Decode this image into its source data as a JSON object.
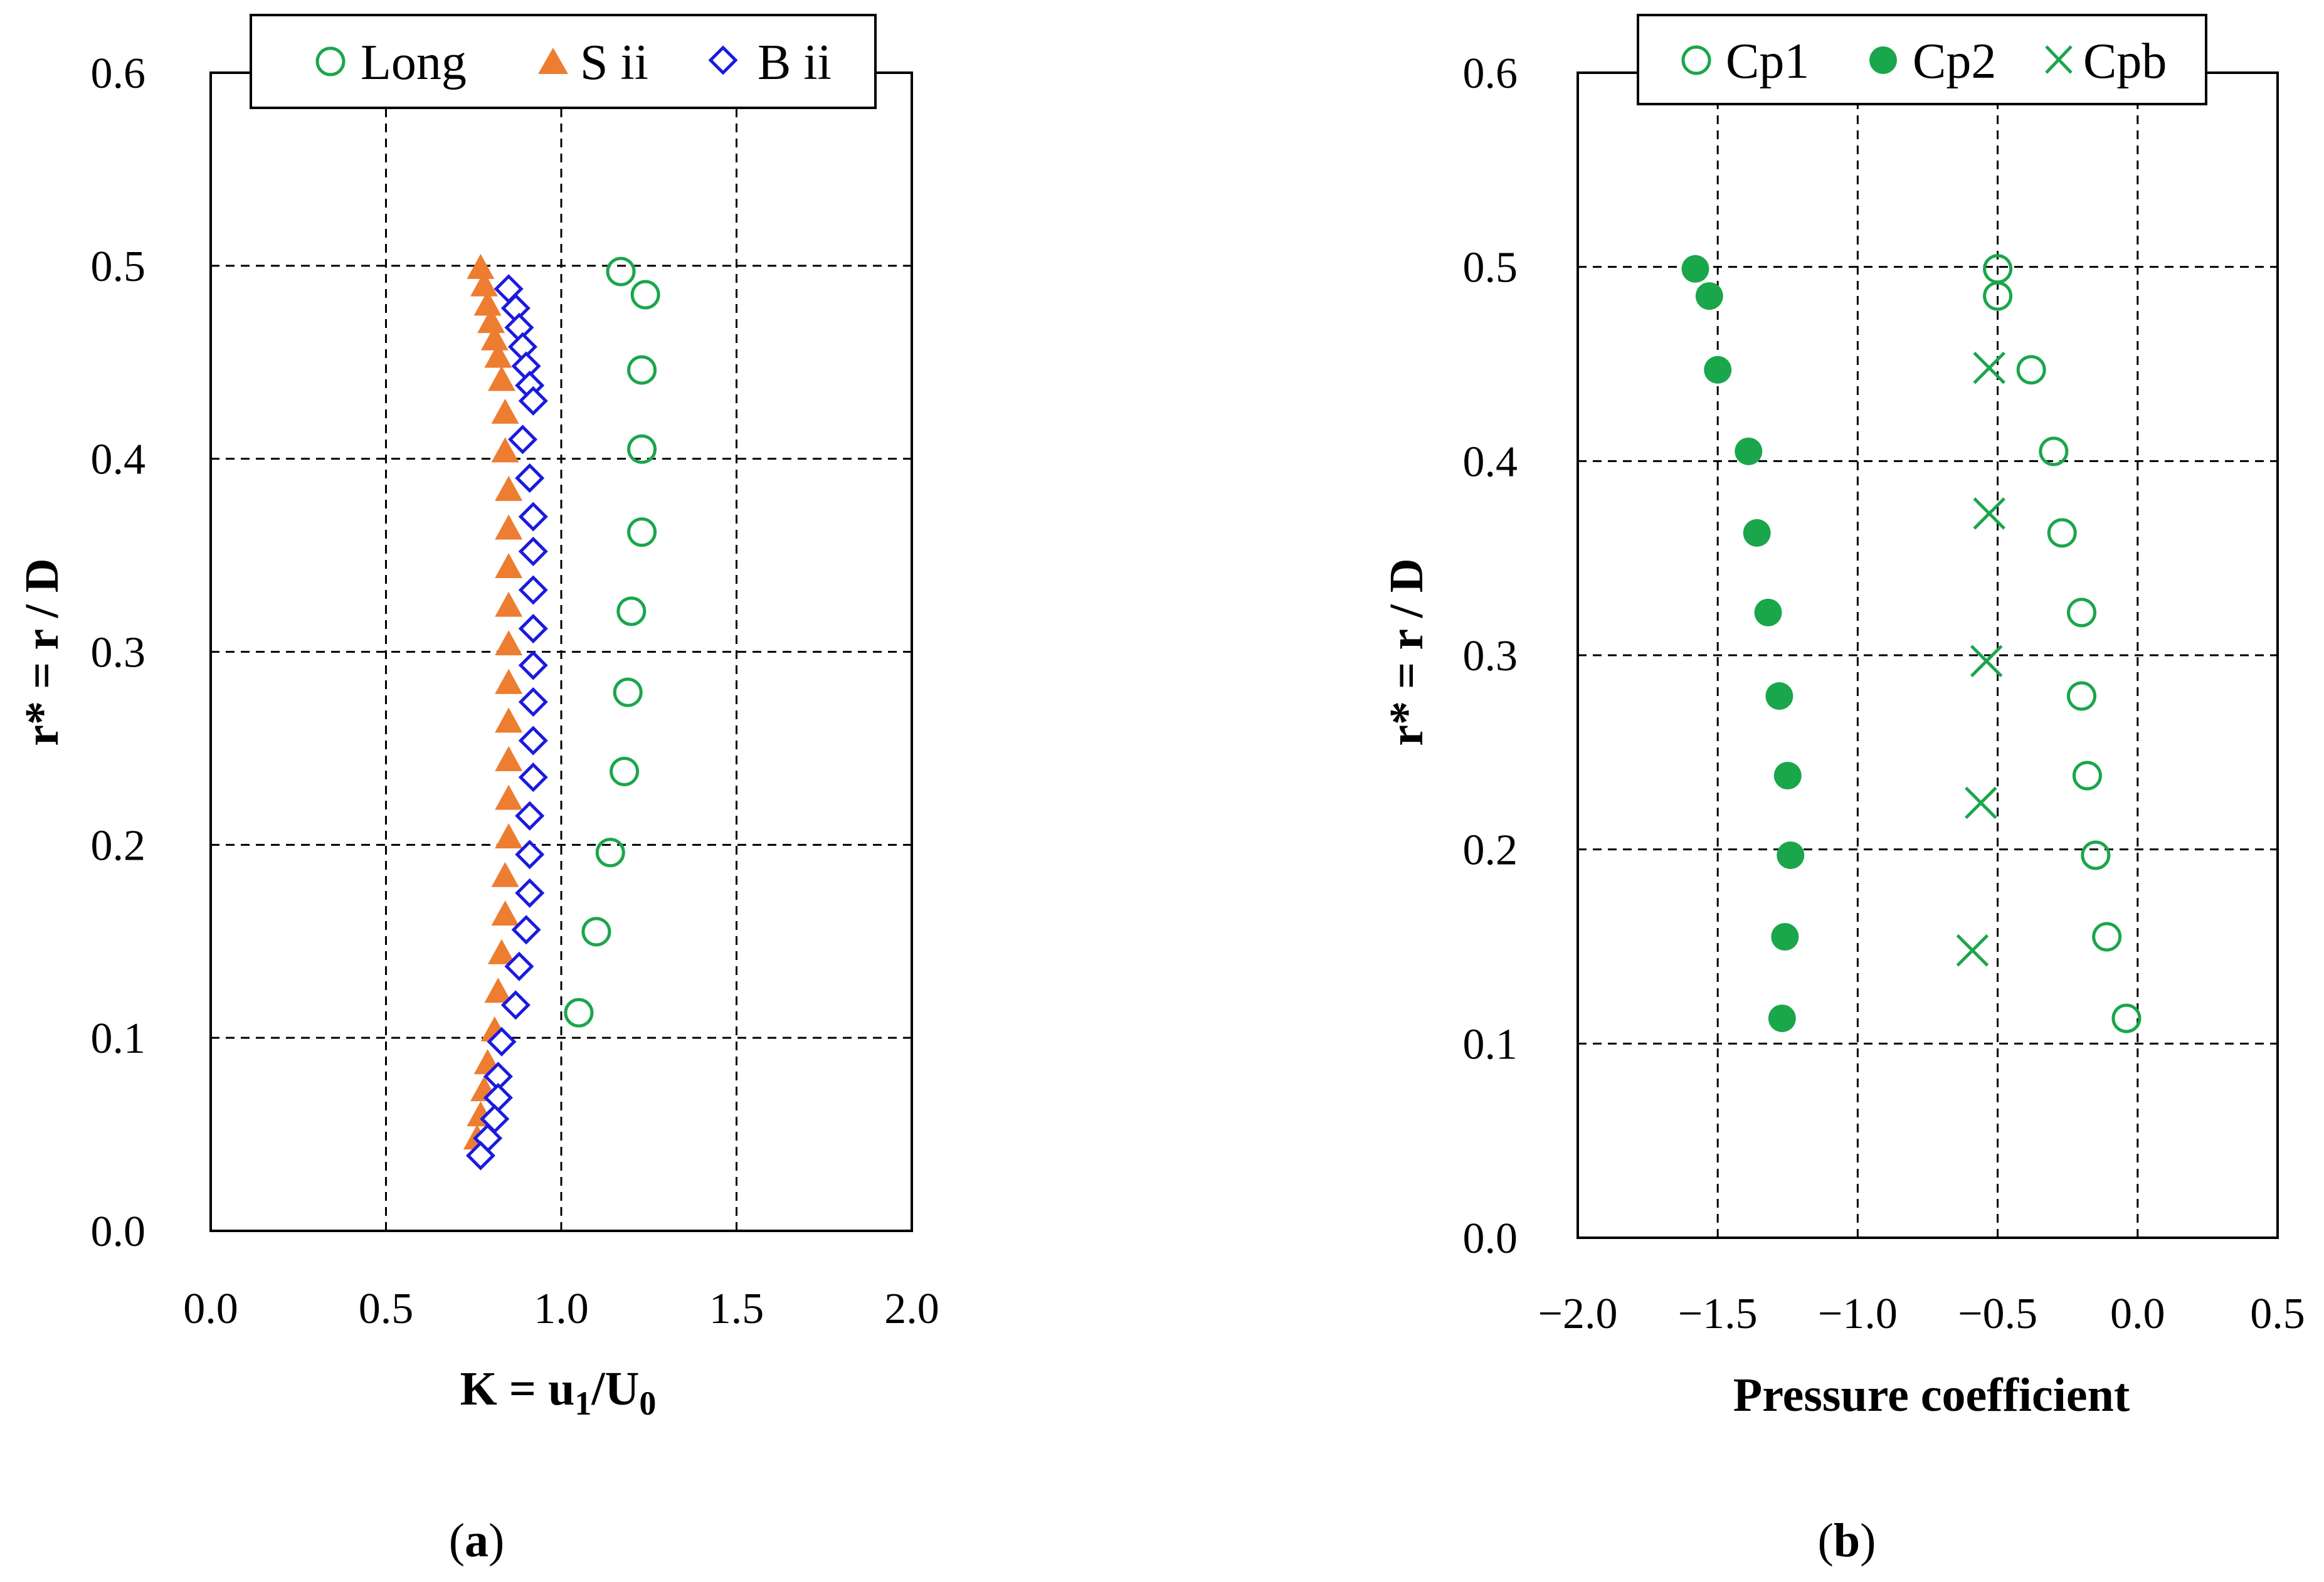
{
  "chart_data": [
    {
      "id": "a",
      "type": "scatter",
      "panel_label": "a",
      "xlabel": "K = u1/U0",
      "xlabel_parts": {
        "main": "K = u",
        "sub1": "1",
        "mid": "/U",
        "sub2": "0"
      },
      "ylabel": "r* = r / D",
      "xlim": [
        0,
        2
      ],
      "ylim": [
        0,
        0.6
      ],
      "xticks": [
        "0.0",
        "0.5",
        "1.0",
        "1.5",
        "2.0"
      ],
      "yticks": [
        "0.0",
        "0.1",
        "0.2",
        "0.3",
        "0.4",
        "0.5",
        "0.6"
      ],
      "xtick_values": [
        0,
        0.5,
        1.0,
        1.5,
        2.0
      ],
      "ytick_values": [
        0,
        0.1,
        0.2,
        0.3,
        0.4,
        0.5,
        0.6
      ],
      "grid": "dashed",
      "legend_position": "top",
      "series": [
        {
          "name": "Long",
          "marker": "open-circle",
          "color": "#1aa64b",
          "points": [
            [
              1.17,
              0.497
            ],
            [
              1.24,
              0.485
            ],
            [
              1.23,
              0.446
            ],
            [
              1.23,
              0.405
            ],
            [
              1.23,
              0.362
            ],
            [
              1.2,
              0.321
            ],
            [
              1.19,
              0.279
            ],
            [
              1.18,
              0.238
            ],
            [
              1.14,
              0.196
            ],
            [
              1.1,
              0.155
            ],
            [
              1.05,
              0.113
            ]
          ]
        },
        {
          "name": "S ii",
          "marker": "filled-triangle",
          "color": "#ed7d31",
          "points": [
            [
              0.77,
              0.499
            ],
            [
              0.78,
              0.49
            ],
            [
              0.79,
              0.48
            ],
            [
              0.8,
              0.471
            ],
            [
              0.81,
              0.462
            ],
            [
              0.82,
              0.453
            ],
            [
              0.83,
              0.441
            ],
            [
              0.84,
              0.424
            ],
            [
              0.84,
              0.404
            ],
            [
              0.85,
              0.384
            ],
            [
              0.85,
              0.364
            ],
            [
              0.85,
              0.344
            ],
            [
              0.85,
              0.324
            ],
            [
              0.85,
              0.304
            ],
            [
              0.85,
              0.284
            ],
            [
              0.85,
              0.264
            ],
            [
              0.85,
              0.244
            ],
            [
              0.85,
              0.224
            ],
            [
              0.85,
              0.204
            ],
            [
              0.84,
              0.184
            ],
            [
              0.84,
              0.164
            ],
            [
              0.83,
              0.144
            ],
            [
              0.82,
              0.124
            ],
            [
              0.81,
              0.104
            ],
            [
              0.79,
              0.087
            ],
            [
              0.78,
              0.073
            ],
            [
              0.77,
              0.06
            ],
            [
              0.76,
              0.048
            ]
          ]
        },
        {
          "name": "B ii",
          "marker": "open-diamond",
          "color": "#1a1adf",
          "points": [
            [
              0.85,
              0.488
            ],
            [
              0.87,
              0.478
            ],
            [
              0.88,
              0.468
            ],
            [
              0.89,
              0.458
            ],
            [
              0.9,
              0.448
            ],
            [
              0.91,
              0.438
            ],
            [
              0.92,
              0.43
            ],
            [
              0.89,
              0.41
            ],
            [
              0.91,
              0.39
            ],
            [
              0.92,
              0.37
            ],
            [
              0.92,
              0.352
            ],
            [
              0.92,
              0.332
            ],
            [
              0.92,
              0.312
            ],
            [
              0.92,
              0.293
            ],
            [
              0.92,
              0.274
            ],
            [
              0.92,
              0.254
            ],
            [
              0.92,
              0.235
            ],
            [
              0.91,
              0.215
            ],
            [
              0.91,
              0.195
            ],
            [
              0.91,
              0.175
            ],
            [
              0.9,
              0.156
            ],
            [
              0.88,
              0.137
            ],
            [
              0.87,
              0.117
            ],
            [
              0.83,
              0.098
            ],
            [
              0.82,
              0.08
            ],
            [
              0.82,
              0.069
            ],
            [
              0.81,
              0.058
            ],
            [
              0.79,
              0.048
            ],
            [
              0.77,
              0.039
            ]
          ]
        }
      ]
    },
    {
      "id": "b",
      "type": "scatter",
      "panel_label": "b",
      "xlabel": "Pressure coefficient",
      "ylabel": "r* = r / D",
      "xlim": [
        -2,
        0.5
      ],
      "ylim": [
        0,
        0.6
      ],
      "xticks": [
        "−2.0",
        "−1.5",
        "−1.0",
        "−0.5",
        "0.0",
        "0.5"
      ],
      "yticks": [
        "0.0",
        "0.1",
        "0.2",
        "0.3",
        "0.4",
        "0.5",
        "0.6"
      ],
      "xtick_values": [
        -2.0,
        -1.5,
        -1.0,
        -0.5,
        0.0,
        0.5
      ],
      "ytick_values": [
        0,
        0.1,
        0.2,
        0.3,
        0.4,
        0.5,
        0.6
      ],
      "grid": "dashed",
      "legend_position": "top",
      "series": [
        {
          "name": "Cp1",
          "marker": "open-circle",
          "color": "#1aa64b",
          "points": [
            [
              -0.5,
              0.499
            ],
            [
              -0.5,
              0.485
            ],
            [
              -0.38,
              0.447
            ],
            [
              -0.3,
              0.405
            ],
            [
              -0.27,
              0.363
            ],
            [
              -0.2,
              0.322
            ],
            [
              -0.2,
              0.279
            ],
            [
              -0.18,
              0.238
            ],
            [
              -0.15,
              0.197
            ],
            [
              -0.11,
              0.155
            ],
            [
              -0.04,
              0.113
            ]
          ]
        },
        {
          "name": "Cp2",
          "marker": "filled-circle",
          "color": "#1aa64b",
          "points": [
            [
              -1.58,
              0.499
            ],
            [
              -1.53,
              0.485
            ],
            [
              -1.5,
              0.447
            ],
            [
              -1.39,
              0.405
            ],
            [
              -1.36,
              0.363
            ],
            [
              -1.32,
              0.322
            ],
            [
              -1.28,
              0.279
            ],
            [
              -1.25,
              0.238
            ],
            [
              -1.24,
              0.197
            ],
            [
              -1.26,
              0.155
            ],
            [
              -1.27,
              0.113
            ]
          ]
        },
        {
          "name": "Cpb",
          "marker": "x",
          "color": "#1aa64b",
          "points": [
            [
              -0.53,
              0.448
            ],
            [
              -0.53,
              0.373
            ],
            [
              -0.54,
              0.297
            ],
            [
              -0.56,
              0.224
            ],
            [
              -0.59,
              0.148
            ]
          ]
        }
      ]
    }
  ]
}
